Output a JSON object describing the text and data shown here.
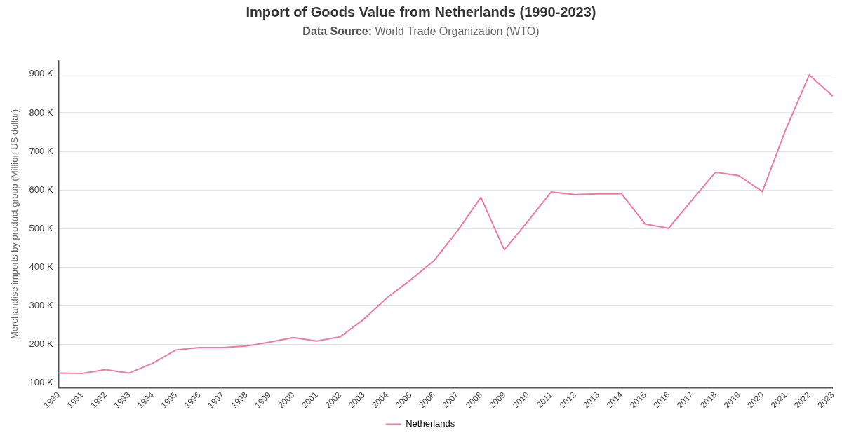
{
  "chart_data": {
    "type": "line",
    "title": "Import of Goods Value from Netherlands (1990-2023)",
    "subtitle": "Data Source: World Trade Organization (WTO)",
    "ylabel": "Merchandise imports by product group (Million US dollar)",
    "categories": [
      "1990",
      "1991",
      "1992",
      "1993",
      "1994",
      "1995",
      "1996",
      "1997",
      "1998",
      "1999",
      "2000",
      "2001",
      "2002",
      "2003",
      "2004",
      "2005",
      "2006",
      "2007",
      "2008",
      "2009",
      "2010",
      "2011",
      "2012",
      "2013",
      "2014",
      "2015",
      "2016",
      "2017",
      "2018",
      "2019",
      "2020",
      "2021",
      "2022",
      "2023"
    ],
    "series": [
      {
        "name": "Netherlands",
        "color": "#f07ba3",
        "values": [
          126000,
          125000,
          135000,
          126000,
          151000,
          186000,
          192000,
          192000,
          196000,
          206000,
          218000,
          209000,
          220000,
          265000,
          321000,
          367000,
          417000,
          494000,
          581000,
          445000,
          519000,
          595000,
          588000,
          590000,
          590000,
          512000,
          501000,
          574000,
          646000,
          637000,
          596000,
          757000,
          898000,
          843000
        ]
      }
    ],
    "ylim": [
      87000,
      936000
    ],
    "yticks": [
      {
        "value": 100000,
        "label": "100 K"
      },
      {
        "value": 200000,
        "label": "200 K"
      },
      {
        "value": 300000,
        "label": "300 K"
      },
      {
        "value": 400000,
        "label": "400 K"
      },
      {
        "value": 500000,
        "label": "500 K"
      },
      {
        "value": 600000,
        "label": "600 K"
      },
      {
        "value": 700000,
        "label": "700 K"
      },
      {
        "value": 800000,
        "label": "800 K"
      },
      {
        "value": 900000,
        "label": "900 K"
      }
    ],
    "grid": "y",
    "legend": "bottom",
    "marker": "none",
    "line_style": "solid"
  }
}
